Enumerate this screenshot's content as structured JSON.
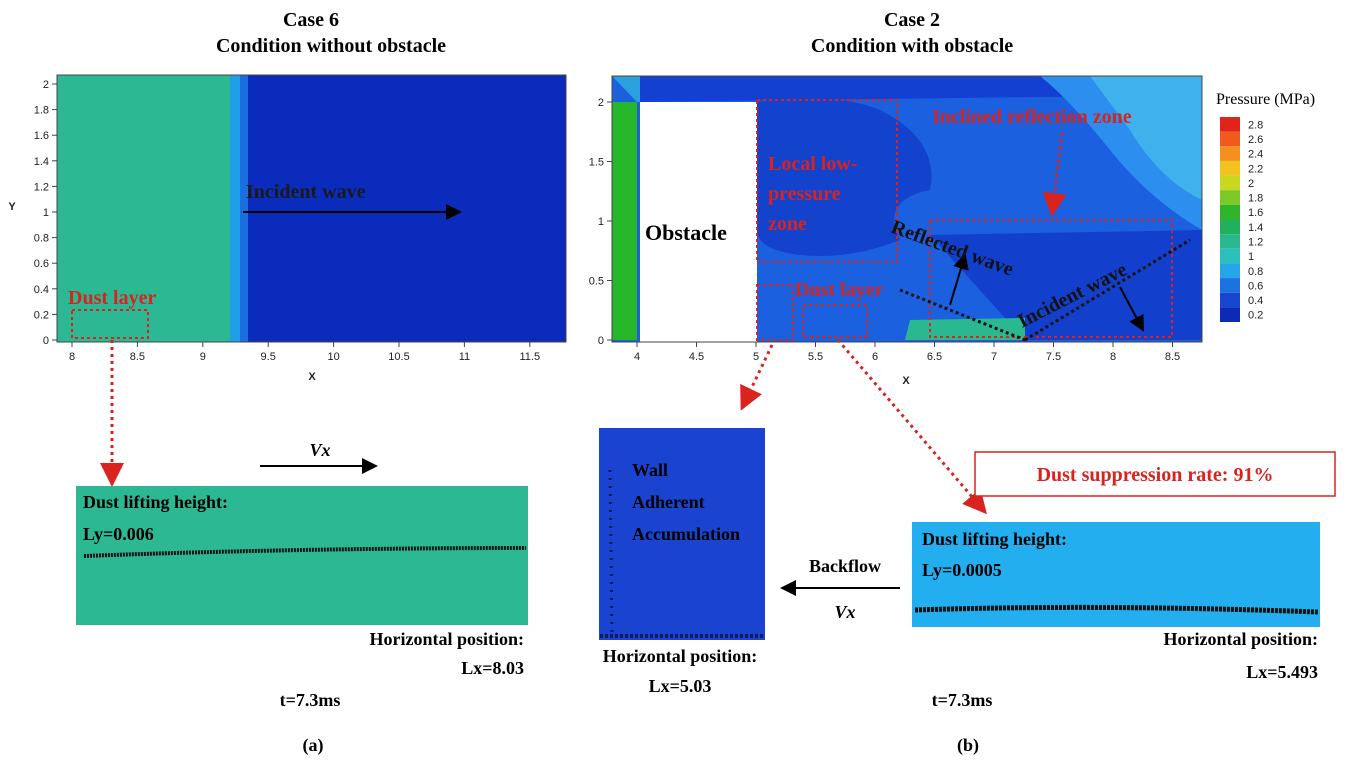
{
  "panel_a": {
    "title": "Case 6",
    "subtitle": "Condition without  obstacle",
    "x_label": "X",
    "y_label": "Y",
    "xticks": [
      "8",
      "8.5",
      "9",
      "9.5",
      "10",
      "10.5",
      "11",
      "11.5"
    ],
    "yticks": [
      "0",
      "0.2",
      "0.4",
      "0.6",
      "0.8",
      "1",
      "1.2",
      "1.4",
      "1.6",
      "1.8",
      "2"
    ],
    "incident_wave": "Incident  wave",
    "dust_layer": "Dust layer",
    "velocity": "Vx",
    "inset": {
      "height_label": "Dust lifting height:",
      "height_value": "Ly=0.006",
      "position_label": "Horizontal position:",
      "position_value": "Lx=8.03"
    },
    "time": "t=7.3ms",
    "caption": "(a)"
  },
  "panel_b": {
    "title": "Case 2",
    "subtitle": "Condition with obstacle",
    "x_label": "X",
    "xticks": [
      "4",
      "4.5",
      "5",
      "5.5",
      "6",
      "6.5",
      "7",
      "7.5",
      "8",
      "8.5"
    ],
    "yticks": [
      "0",
      "0.5",
      "1",
      "1.5",
      "2"
    ],
    "obstacle": "Obstacle",
    "low_pressure_zone": [
      "Local low-",
      "pressure",
      "zone"
    ],
    "dust_layer": "Dust layer",
    "reflection_zone": "Inclined reflection zone",
    "reflected_wave": "Reflected wave",
    "incident_wave": "Incident wave",
    "colorbar": {
      "title": "Pressure (MPa)",
      "labels": [
        "2.8",
        "2.6",
        "2.4",
        "2.2",
        "2",
        "1.8",
        "1.6",
        "1.4",
        "1.2",
        "1",
        "0.8",
        "0.6",
        "0.4",
        "0.2"
      ]
    },
    "wall_inset": {
      "label": [
        "Wall",
        "Adherent",
        "Accumulation"
      ],
      "position_label": "Horizontal position:",
      "position_value": "Lx=5.03"
    },
    "backflow": "Backflow",
    "velocity": "Vx",
    "suppression": "Dust suppression rate: 91%",
    "inset": {
      "height_label": "Dust lifting height:",
      "height_value": "Ly=0.0005",
      "position_label": "Horizontal position:",
      "position_value": "Lx=5.493"
    },
    "time": "t=7.3ms",
    "caption": "(b)"
  }
}
